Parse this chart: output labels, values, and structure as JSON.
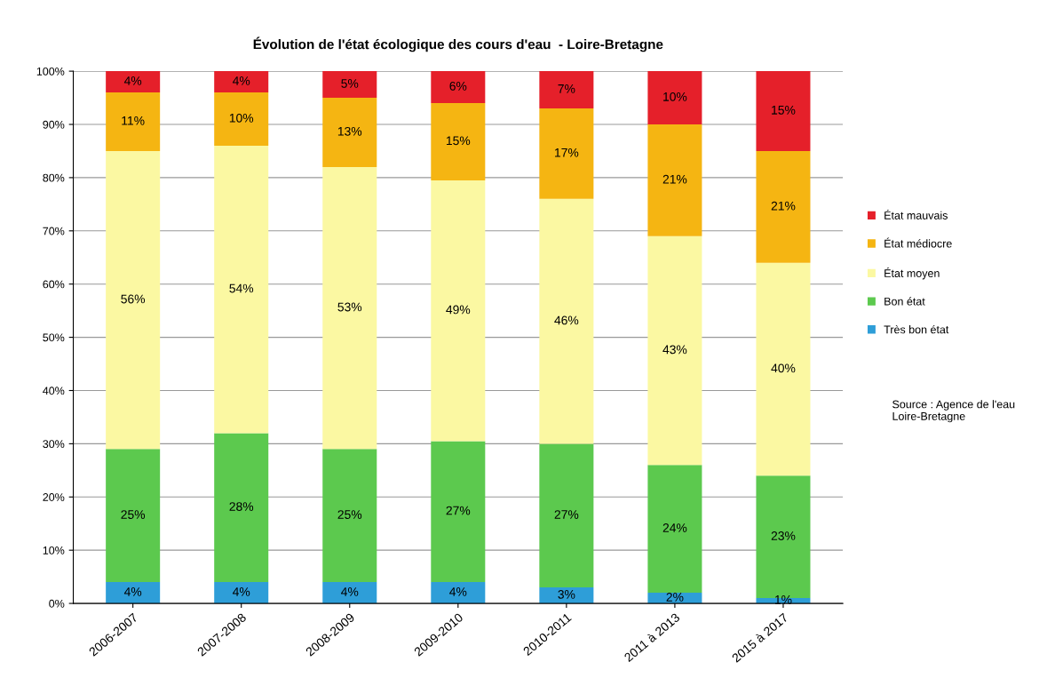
{
  "chart_data": {
    "type": "bar",
    "title": "Évolution de l'état écologique des cours d'eau  - Loire-Bretagne",
    "categories": [
      "2006-2007",
      "2007-2008",
      "2008-2009",
      "2009-2010",
      "2010-2011",
      "2011 à 2013",
      "2015 à 2017"
    ],
    "stacked": true,
    "series": [
      {
        "name": "Très bon état",
        "color": "#2e9ed8",
        "values": [
          4,
          4,
          4,
          4,
          3,
          2,
          1
        ],
        "value_labels": [
          "4%",
          "4%",
          "4%",
          "4%",
          "3%",
          "2%",
          "1%"
        ]
      },
      {
        "name": "Bon état",
        "color": "#5cc94e",
        "values": [
          25,
          28,
          25,
          26.5,
          27,
          24,
          23
        ],
        "value_labels": [
          "25%",
          "28%",
          "25%",
          "27%",
          "27%",
          "24%",
          "23%"
        ]
      },
      {
        "name": "État moyen",
        "color": "#fbf8a2",
        "values": [
          56,
          54,
          53,
          49,
          46,
          43,
          40
        ],
        "value_labels": [
          "56%",
          "54%",
          "53%",
          "49%",
          "46%",
          "43%",
          "40%"
        ]
      },
      {
        "name": "État médiocre",
        "color": "#f5b512",
        "values": [
          11,
          10,
          13,
          14.5,
          17,
          21,
          21
        ],
        "value_labels": [
          "11%",
          "10%",
          "13%",
          "15%",
          "17%",
          "21%",
          "21%"
        ]
      },
      {
        "name": "État mauvais",
        "color": "#e5202a",
        "values": [
          4,
          4,
          5,
          6,
          7,
          10,
          15
        ],
        "value_labels": [
          "4%",
          "4%",
          "5%",
          "6%",
          "7%",
          "10%",
          "15%"
        ]
      }
    ],
    "ylim": [
      0,
      100
    ],
    "yticks": [
      {
        "value": 0,
        "label": "0%"
      },
      {
        "value": 10,
        "label": "10%"
      },
      {
        "value": 20,
        "label": "20%"
      },
      {
        "value": 30,
        "label": "30%"
      },
      {
        "value": 40,
        "label": "40%"
      },
      {
        "value": 50,
        "label": "50%"
      },
      {
        "value": 60,
        "label": "60%"
      },
      {
        "value": 70,
        "label": "70%"
      },
      {
        "value": 80,
        "label": "80%"
      },
      {
        "value": 90,
        "label": "90%"
      },
      {
        "value": 100,
        "label": "100%"
      }
    ],
    "grid": "y",
    "legend": "right",
    "annotations": [
      "Source : Agence de l'eau\nLoire-Bretagne"
    ]
  }
}
